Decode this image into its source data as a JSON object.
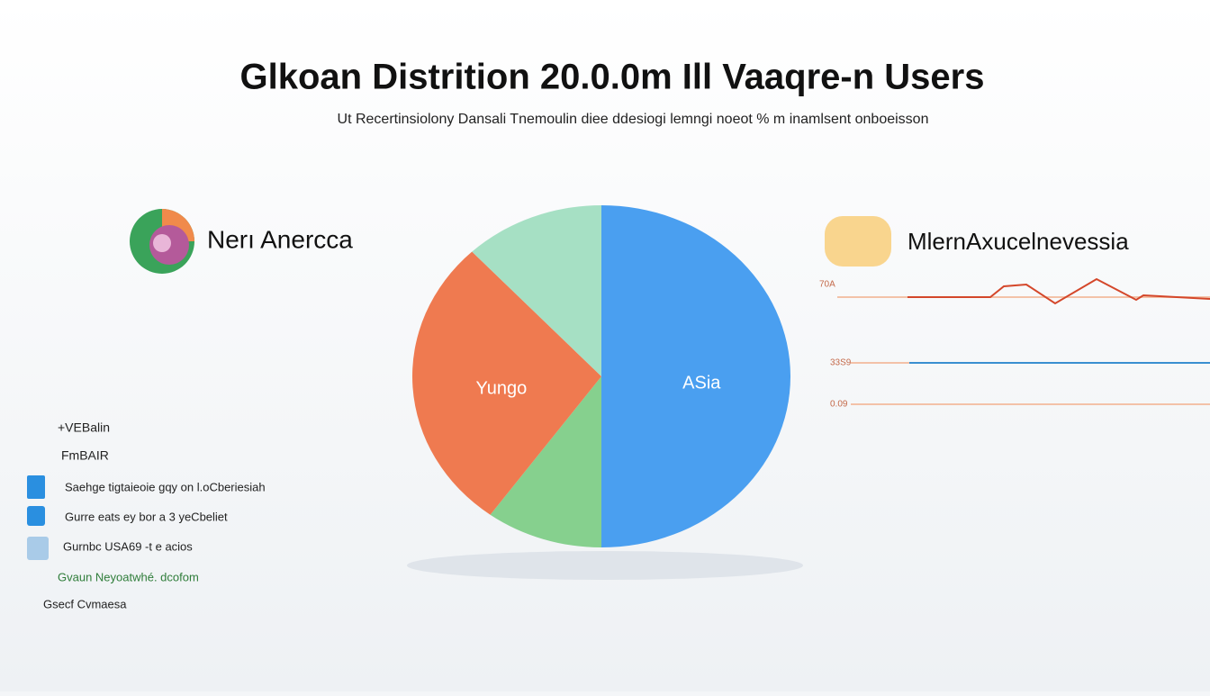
{
  "chart_data": {
    "type": "pie",
    "title": "Glkoan Distrition 20.0.0m Ill Vaaqre-n Users",
    "subtitle": "Ut Recertinsiolony Dansali Tnemoulin diee  ddesiogi lemngi noeot % m inamlsent onboeisson",
    "categories": [
      "ASia",
      null,
      "Yungo",
      null
    ],
    "values": [
      50,
      10,
      28,
      12
    ],
    "colors": [
      "#4a9ff0",
      "#86d08e",
      "#ef7a50",
      "#a6e0c4"
    ]
  },
  "panels": {
    "left": {
      "heading": "Nerı Anercca",
      "items": [
        "+VEBalin",
        "FmBAIR",
        "Saehge tigtaieoie gqy on l.oCberiesiah",
        "Gurre eats ey bor a 3 yeCbeliet",
        "Gurnbc USA69 -t e acios",
        "Gvaun  Neyoatwhé. dcofom",
        "Gsecf Cvmaesa"
      ]
    },
    "right": {
      "heading": "MlernAxucelnevessia",
      "line_labels": [
        "70A",
        "33S9",
        "0.09"
      ]
    }
  }
}
